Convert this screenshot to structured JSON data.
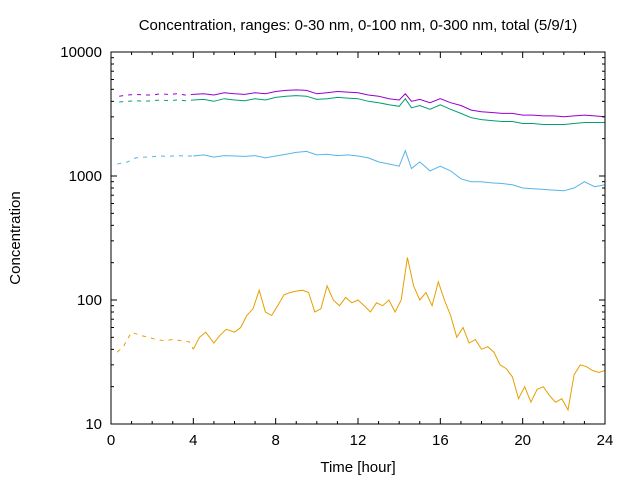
{
  "chart_data": {
    "type": "line",
    "title": "Concentration, ranges: 0-30 nm, 0-100 nm, 0-300 nm, total (5/9/1)",
    "xlabel": "Time [hour]",
    "ylabel": "Concentration",
    "xlim": [
      0,
      24
    ],
    "ylim": [
      10,
      10000
    ],
    "yscale": "log",
    "grid": false,
    "legend": "none",
    "x_ticks": [
      0,
      4,
      8,
      12,
      16,
      20,
      24
    ],
    "y_ticks": [
      10,
      100,
      1000,
      10000
    ],
    "x_tick_labels": [
      "0",
      "4",
      "8",
      "12",
      "16",
      "20",
      "24"
    ],
    "y_tick_labels": [
      "10",
      "100",
      "1000",
      "10000"
    ],
    "series": [
      {
        "color": "#9400d3",
        "style": "dotted-then-solid",
        "x": [
          0.4,
          0.8,
          1.2,
          1.6,
          2.0,
          2.4,
          2.8,
          3.2,
          3.6,
          4.0,
          4.5,
          5.0,
          5.5,
          6.0,
          6.5,
          7.0,
          7.5,
          8.0,
          8.5,
          9.0,
          9.5,
          10.0,
          10.5,
          11.0,
          11.5,
          12.0,
          12.5,
          13.0,
          13.5,
          14.0,
          14.3,
          14.6,
          15.0,
          15.5,
          16.0,
          16.5,
          17.0,
          17.5,
          18.0,
          18.5,
          19.0,
          19.5,
          20.0,
          20.5,
          21.0,
          21.5,
          22.0,
          22.5,
          23.0,
          23.5,
          24.0
        ],
        "y": [
          4400,
          4500,
          4550,
          4500,
          4500,
          4600,
          4550,
          4600,
          4500,
          4550,
          4600,
          4500,
          4700,
          4600,
          4550,
          4700,
          4600,
          4800,
          4900,
          4950,
          4900,
          4600,
          4700,
          4800,
          4750,
          4700,
          4500,
          4400,
          4200,
          4100,
          4600,
          4000,
          4150,
          3900,
          4200,
          3900,
          3700,
          3400,
          3300,
          3250,
          3200,
          3200,
          3100,
          3100,
          3050,
          3050,
          3000,
          3050,
          3100,
          3050,
          3000
        ]
      },
      {
        "color": "#009e73",
        "style": "dotted-then-solid",
        "x": [
          0.4,
          0.8,
          1.2,
          1.6,
          2.0,
          2.4,
          2.8,
          3.2,
          3.6,
          4.0,
          4.5,
          5.0,
          5.5,
          6.0,
          6.5,
          7.0,
          7.5,
          8.0,
          8.5,
          9.0,
          9.5,
          10.0,
          10.5,
          11.0,
          11.5,
          12.0,
          12.5,
          13.0,
          13.5,
          14.0,
          14.3,
          14.6,
          15.0,
          15.5,
          16.0,
          16.5,
          17.0,
          17.5,
          18.0,
          18.5,
          19.0,
          19.5,
          20.0,
          20.5,
          21.0,
          21.5,
          22.0,
          22.5,
          23.0,
          23.5,
          24.0
        ],
        "y": [
          3950,
          4000,
          4050,
          4000,
          4050,
          4100,
          4050,
          4100,
          4050,
          4100,
          4150,
          4000,
          4200,
          4100,
          4050,
          4200,
          4100,
          4300,
          4400,
          4450,
          4400,
          4150,
          4200,
          4300,
          4250,
          4200,
          4000,
          3900,
          3750,
          3650,
          4200,
          3550,
          3700,
          3450,
          3750,
          3450,
          3200,
          2950,
          2850,
          2800,
          2750,
          2750,
          2650,
          2650,
          2600,
          2600,
          2600,
          2650,
          2700,
          2700,
          2700
        ]
      },
      {
        "color": "#56b4e9",
        "style": "dotted-then-solid",
        "x": [
          0.3,
          0.8,
          1.2,
          1.6,
          2.0,
          2.4,
          2.8,
          3.2,
          3.6,
          4.0,
          4.5,
          5.0,
          5.5,
          6.0,
          6.5,
          7.0,
          7.5,
          8.0,
          8.5,
          9.0,
          9.5,
          10.0,
          10.5,
          11.0,
          11.5,
          12.0,
          12.5,
          13.0,
          13.5,
          14.0,
          14.3,
          14.6,
          15.0,
          15.5,
          16.0,
          16.5,
          17.0,
          17.5,
          18.0,
          18.5,
          19.0,
          19.5,
          20.0,
          20.5,
          21.0,
          21.5,
          22.0,
          22.5,
          23.0,
          23.5,
          24.0
        ],
        "y": [
          1250,
          1300,
          1400,
          1420,
          1430,
          1450,
          1440,
          1460,
          1450,
          1450,
          1480,
          1420,
          1460,
          1450,
          1440,
          1460,
          1400,
          1450,
          1500,
          1550,
          1580,
          1480,
          1500,
          1460,
          1480,
          1450,
          1400,
          1300,
          1250,
          1200,
          1600,
          1150,
          1300,
          1100,
          1200,
          1100,
          950,
          900,
          900,
          880,
          870,
          850,
          800,
          790,
          780,
          770,
          760,
          800,
          900,
          820,
          850
        ]
      },
      {
        "color": "#e69f00",
        "style": "dotted-then-solid",
        "x": [
          0.3,
          0.6,
          1.0,
          1.4,
          1.8,
          2.2,
          2.6,
          3.0,
          3.4,
          3.8,
          4.0,
          4.3,
          4.6,
          5.0,
          5.3,
          5.6,
          6.0,
          6.3,
          6.6,
          6.9,
          7.2,
          7.5,
          7.8,
          8.1,
          8.4,
          8.7,
          9.0,
          9.3,
          9.6,
          9.9,
          10.2,
          10.5,
          10.8,
          11.1,
          11.4,
          11.7,
          12.0,
          12.3,
          12.6,
          12.9,
          13.2,
          13.5,
          13.8,
          14.1,
          14.4,
          14.7,
          15.0,
          15.3,
          15.6,
          15.9,
          16.2,
          16.5,
          16.8,
          17.1,
          17.4,
          17.7,
          18.0,
          18.3,
          18.6,
          18.9,
          19.2,
          19.5,
          19.8,
          20.1,
          20.4,
          20.7,
          21.0,
          21.3,
          21.6,
          21.9,
          22.2,
          22.5,
          22.8,
          23.1,
          23.4,
          23.7,
          24.0
        ],
        "y": [
          38,
          42,
          55,
          52,
          50,
          48,
          47,
          48,
          47,
          46,
          40,
          50,
          55,
          45,
          52,
          58,
          55,
          60,
          75,
          85,
          120,
          80,
          75,
          90,
          110,
          115,
          118,
          120,
          115,
          80,
          85,
          130,
          100,
          90,
          105,
          95,
          100,
          90,
          80,
          95,
          90,
          100,
          80,
          100,
          220,
          130,
          100,
          115,
          90,
          140,
          100,
          75,
          50,
          60,
          45,
          48,
          40,
          42,
          38,
          30,
          28,
          24,
          16,
          20,
          15,
          19,
          20,
          17,
          15,
          16,
          13,
          25,
          30,
          29,
          27,
          26,
          27
        ]
      }
    ]
  }
}
